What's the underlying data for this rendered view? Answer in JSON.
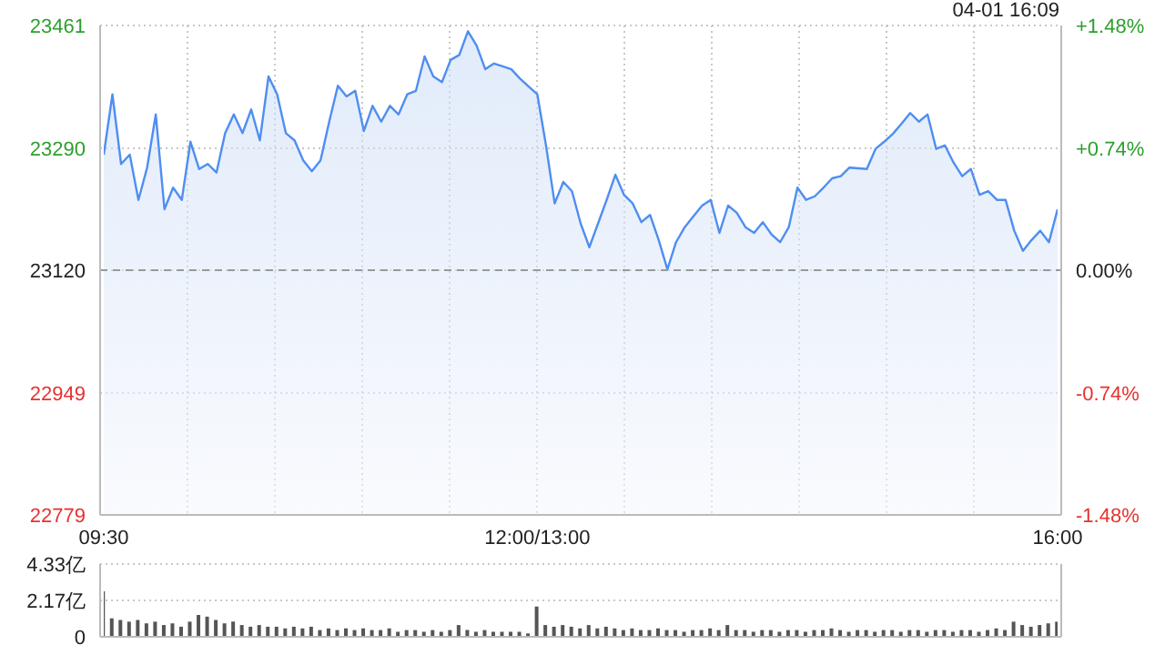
{
  "chart_data": [
    {
      "type": "area",
      "annotations": [
        "04-01 16:09"
      ],
      "categories": [
        "09:30",
        null,
        null,
        null,
        null,
        null,
        null,
        null,
        null,
        null,
        null,
        null,
        null,
        null,
        null,
        null,
        null,
        null,
        null,
        null,
        null,
        null,
        null,
        null,
        null,
        null,
        null,
        null,
        null,
        null,
        null,
        null,
        null,
        null,
        null,
        null,
        null,
        null,
        null,
        null,
        null,
        null,
        null,
        null,
        null,
        null,
        null,
        null,
        null,
        null,
        "12:00/13:00",
        null,
        null,
        null,
        null,
        null,
        null,
        null,
        null,
        null,
        null,
        null,
        null,
        null,
        null,
        null,
        null,
        null,
        null,
        null,
        null,
        null,
        null,
        null,
        null,
        null,
        null,
        null,
        null,
        null,
        null,
        null,
        null,
        null,
        null,
        null,
        null,
        null,
        null,
        null,
        null,
        null,
        null,
        null,
        null,
        null,
        null,
        null,
        null,
        null,
        null,
        null,
        null,
        null,
        null,
        null,
        null,
        null,
        null,
        null,
        "16:00"
      ],
      "series": [
        {
          "color": "#4f8ef0",
          "values": [
            23281,
            23365,
            23268,
            23281,
            23218,
            23263,
            23337,
            23205,
            23235,
            23218,
            23299,
            23261,
            23268,
            23256,
            23311,
            23337,
            23311,
            23344,
            23301,
            23390,
            23365,
            23311,
            23301,
            23273,
            23258,
            23273,
            23327,
            23377,
            23362,
            23370,
            23314,
            23349,
            23327,
            23349,
            23337,
            23365,
            23370,
            23418,
            23390,
            23382,
            23413,
            23420,
            23453,
            23433,
            23400,
            23408,
            23404,
            23400,
            23387,
            23376,
            23365,
            23294,
            23213,
            23243,
            23230,
            23185,
            23152,
            23185,
            23218,
            23253,
            23225,
            23213,
            23187,
            23197,
            23162,
            23121,
            23159,
            23180,
            23195,
            23210,
            23218,
            23172,
            23210,
            23200,
            23180,
            23172,
            23187,
            23170,
            23159,
            23180,
            23235,
            23218,
            23223,
            23235,
            23248,
            23251,
            23263,
            23262,
            23261,
            23289,
            23299,
            23310,
            23324,
            23339,
            23327,
            23337,
            23289,
            23294,
            23270,
            23251,
            23261,
            23225,
            23230,
            23218,
            23218,
            23175,
            23147,
            23162,
            23175,
            23159,
            23205
          ]
        }
      ],
      "ylim": [
        22779,
        23461
      ],
      "yticks": [
        22779,
        22949,
        23120,
        23290,
        23461
      ],
      "y2lim": [
        -1.48,
        1.48
      ],
      "y2ticks": [
        {
          "value": -1.48,
          "label": "-1.48%"
        },
        {
          "value": -0.74,
          "label": "-0.74%"
        },
        {
          "value": 0,
          "label": "0.00%"
        },
        {
          "value": 0.74,
          "label": "+0.74%"
        },
        {
          "value": 1.48,
          "label": "+1.48%"
        }
      ],
      "ref_lines": [
        {
          "axis": "y",
          "value": 23120,
          "line_style": "dashed",
          "color": "#999999"
        }
      ],
      "grid": true
    },
    {
      "type": "bar",
      "tick_labels": "y",
      "categories": [
        null,
        null,
        null,
        null,
        null,
        null,
        null,
        null,
        null,
        null,
        null,
        null,
        null,
        null,
        null,
        null,
        null,
        null,
        null,
        null,
        null,
        null,
        null,
        null,
        null,
        null,
        null,
        null,
        null,
        null,
        null,
        null,
        null,
        null,
        null,
        null,
        null,
        null,
        null,
        null,
        null,
        null,
        null,
        null,
        null,
        null,
        null,
        null,
        null,
        null,
        null,
        null,
        null,
        null,
        null,
        null,
        null,
        null,
        null,
        null,
        null,
        null,
        null,
        null,
        null,
        null,
        null,
        null,
        null,
        null,
        null,
        null,
        null,
        null,
        null,
        null,
        null,
        null,
        null,
        null,
        null,
        null,
        null,
        null,
        null,
        null,
        null,
        null,
        null,
        null,
        null,
        null,
        null,
        null,
        null,
        null,
        null,
        null,
        null,
        null,
        null,
        null,
        null,
        null,
        null,
        null,
        null,
        null,
        null,
        null,
        null
      ],
      "series": [
        {
          "color": "#555555",
          "values": [
            2.7,
            1.1,
            1.0,
            0.9,
            1.0,
            0.8,
            0.9,
            0.7,
            0.8,
            0.6,
            0.9,
            1.3,
            1.2,
            1.0,
            0.8,
            0.9,
            0.7,
            0.6,
            0.7,
            0.6,
            0.6,
            0.5,
            0.6,
            0.5,
            0.6,
            0.4,
            0.5,
            0.4,
            0.5,
            0.4,
            0.5,
            0.4,
            0.4,
            0.5,
            0.3,
            0.4,
            0.4,
            0.3,
            0.4,
            0.3,
            0.4,
            0.7,
            0.4,
            0.3,
            0.4,
            0.3,
            0.3,
            0.3,
            0.3,
            0.2,
            1.8,
            0.7,
            0.6,
            0.7,
            0.6,
            0.5,
            0.7,
            0.5,
            0.6,
            0.5,
            0.4,
            0.5,
            0.4,
            0.4,
            0.5,
            0.4,
            0.4,
            0.3,
            0.4,
            0.4,
            0.5,
            0.4,
            0.7,
            0.4,
            0.4,
            0.3,
            0.4,
            0.4,
            0.3,
            0.4,
            0.4,
            0.3,
            0.4,
            0.4,
            0.5,
            0.4,
            0.3,
            0.4,
            0.4,
            0.3,
            0.4,
            0.4,
            0.3,
            0.4,
            0.4,
            0.3,
            0.4,
            0.4,
            0.3,
            0.4,
            0.4,
            0.3,
            0.4,
            0.5,
            0.4,
            0.9,
            0.7,
            0.6,
            0.7,
            0.8,
            0.9
          ]
        }
      ],
      "ylim": [
        0,
        4.33
      ],
      "yticks": [
        0,
        {
          "value": 2.17,
          "label": "2.17亿"
        },
        {
          "value": 4.33,
          "label": "4.33亿"
        }
      ],
      "grid": "y"
    }
  ]
}
